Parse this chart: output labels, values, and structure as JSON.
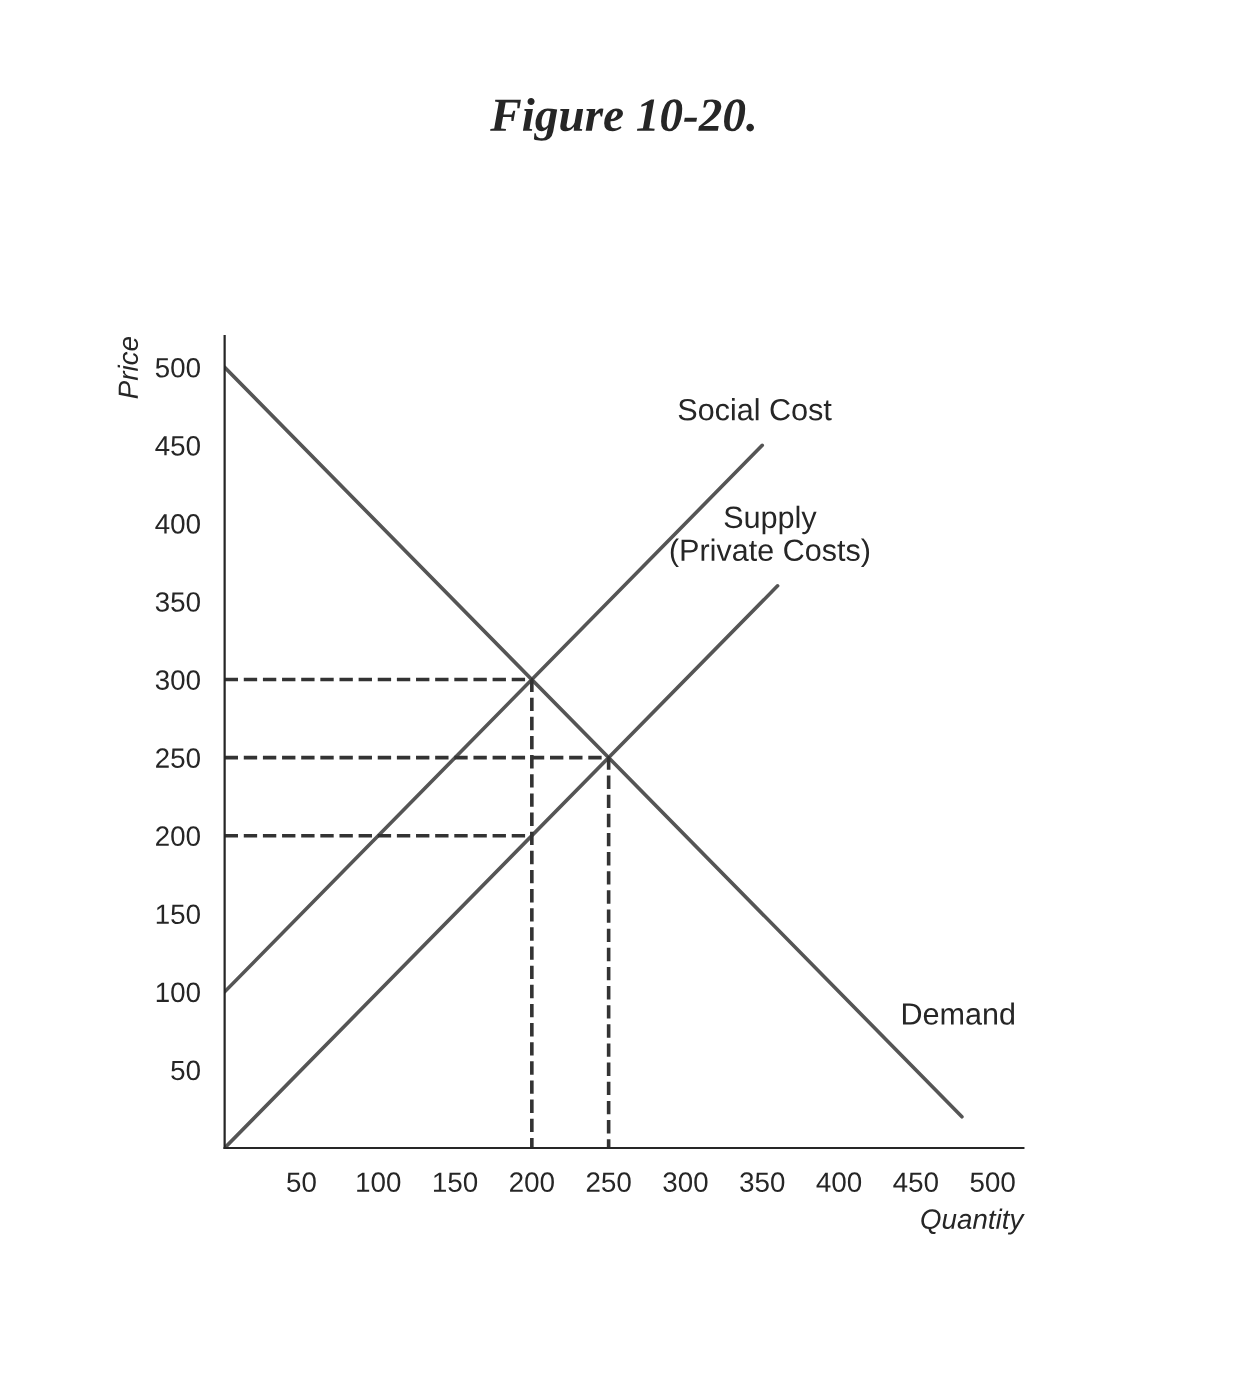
{
  "chart_data": {
    "type": "line",
    "title": "Figure 10-20.",
    "xlabel": "Quantity",
    "ylabel": "Price",
    "xlim": [
      0,
      520
    ],
    "ylim": [
      0,
      520
    ],
    "xticks": [
      50,
      100,
      150,
      200,
      250,
      300,
      350,
      400,
      450,
      500
    ],
    "yticks": [
      50,
      100,
      150,
      200,
      250,
      300,
      350,
      400,
      450,
      500
    ],
    "grid": false,
    "legend": false,
    "marker": "none",
    "series": [
      {
        "name": "Demand",
        "color": "#555555",
        "x": [
          0,
          480
        ],
        "values": [
          500,
          20
        ],
        "line_style": "solid"
      },
      {
        "name": "Social Cost",
        "color": "#555555",
        "x": [
          0,
          350
        ],
        "values": [
          100,
          450
        ],
        "line_style": "solid"
      },
      {
        "name": "Supply\n(Private Costs)",
        "color": "#555555",
        "x": [
          0,
          360
        ],
        "values": [
          0,
          360
        ],
        "line_style": "solid"
      },
      {
        "color": "#333333",
        "x": [
          0,
          200,
          200
        ],
        "values": [
          300,
          300,
          0
        ],
        "line_style": "dashed"
      },
      {
        "color": "#333333",
        "x": [
          0,
          250,
          250
        ],
        "values": [
          250,
          250,
          0
        ],
        "line_style": "dashed"
      },
      {
        "color": "#333333",
        "x": [
          0,
          200
        ],
        "values": [
          200,
          200
        ],
        "line_style": "dashed"
      }
    ]
  }
}
